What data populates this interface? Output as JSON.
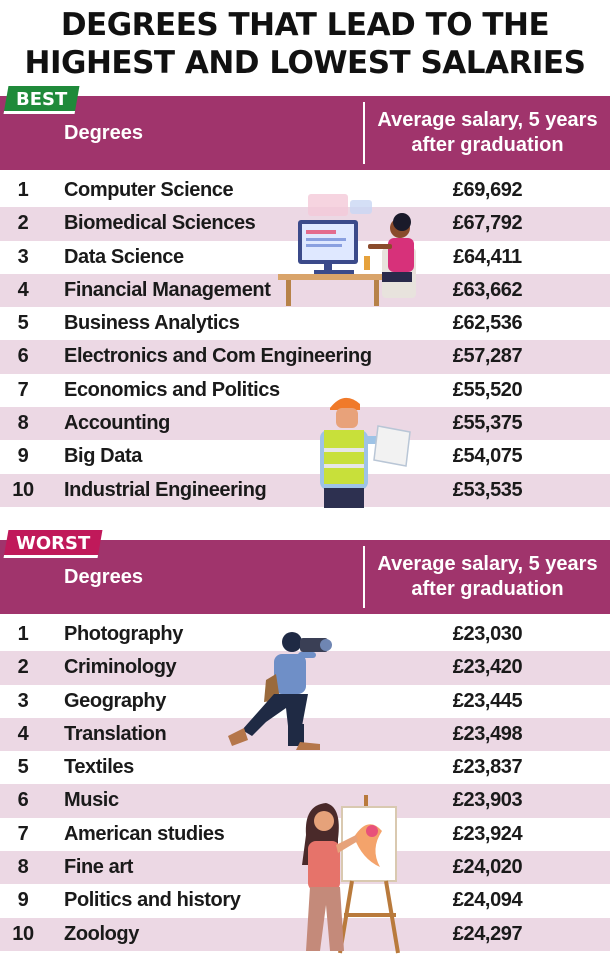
{
  "title": {
    "line1": "DEGREES THAT LEAD TO THE",
    "line2": "HIGHEST AND LOWEST SALARIES"
  },
  "colors": {
    "header": "#a0346c",
    "row_alt": "#ecd8e4",
    "best_tag": "#1f8a3a",
    "worst_tag": "#c0195a"
  },
  "best": {
    "tag": "BEST",
    "col_degrees": "Degrees",
    "col_salary_line1": "Average salary, 5 years",
    "col_salary_line2": "after graduation",
    "rows": [
      {
        "rank": "1",
        "degree": "Computer Science",
        "salary": "£69,692"
      },
      {
        "rank": "2",
        "degree": "Biomedical Sciences",
        "salary": "£67,792"
      },
      {
        "rank": "3",
        "degree": "Data Science",
        "salary": "£64,411"
      },
      {
        "rank": "4",
        "degree": "Financial Management",
        "salary": "£63,662"
      },
      {
        "rank": "5",
        "degree": "Business Analytics",
        "salary": "£62,536"
      },
      {
        "rank": "6",
        "degree": "Electronics and Com Engineering",
        "salary": "£57,287"
      },
      {
        "rank": "7",
        "degree": "Economics and Politics",
        "salary": "£55,520"
      },
      {
        "rank": "8",
        "degree": "Accounting",
        "salary": "£55,375"
      },
      {
        "rank": "9",
        "degree": "Big Data",
        "salary": "£54,075"
      },
      {
        "rank": "10",
        "degree": "Industrial Engineering",
        "salary": "£53,535"
      }
    ]
  },
  "worst": {
    "tag": "WORST",
    "col_degrees": "Degrees",
    "col_salary_line1": "Average salary, 5 years",
    "col_salary_line2": "after graduation",
    "rows": [
      {
        "rank": "1",
        "degree": "Photography",
        "salary": "£23,030"
      },
      {
        "rank": "2",
        "degree": "Criminology",
        "salary": "£23,420"
      },
      {
        "rank": "3",
        "degree": "Geography",
        "salary": "£23,445"
      },
      {
        "rank": "4",
        "degree": "Translation",
        "salary": "£23,498"
      },
      {
        "rank": "5",
        "degree": "Textiles",
        "salary": "£23,837"
      },
      {
        "rank": "6",
        "degree": "Music",
        "salary": "£23,903"
      },
      {
        "rank": "7",
        "degree": "American studies",
        "salary": "£23,924"
      },
      {
        "rank": "8",
        "degree": "Fine art",
        "salary": "£24,020"
      },
      {
        "rank": "9",
        "degree": "Politics and history",
        "salary": "£24,094"
      },
      {
        "rank": "10",
        "degree": "Zoology",
        "salary": "£24,297"
      }
    ]
  },
  "illustrations": [
    "computer-worker-illustration",
    "engineer-illustration",
    "photographer-illustration",
    "painter-illustration"
  ]
}
